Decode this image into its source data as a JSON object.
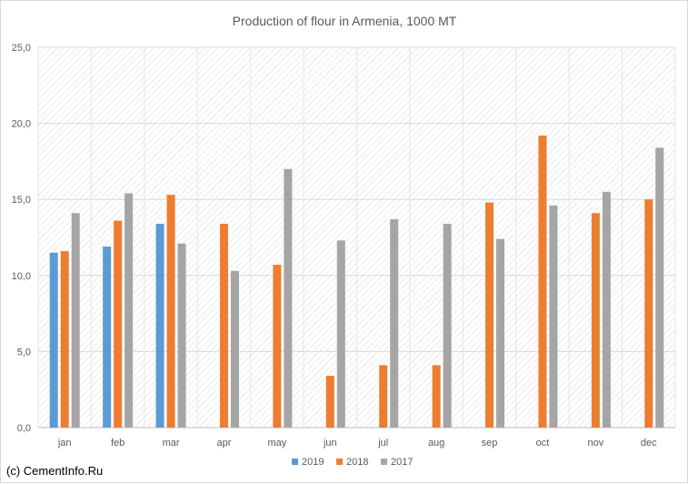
{
  "chart_data": {
    "type": "bar",
    "title": "Production of flour in Armenia, 1000 MT",
    "xlabel": "",
    "ylabel": "",
    "ylim": [
      0,
      25
    ],
    "yticks": [
      "0,0",
      "5,0",
      "10,0",
      "15,0",
      "20,0",
      "25,0"
    ],
    "ytick_values": [
      0,
      5,
      10,
      15,
      20,
      25
    ],
    "categories": [
      "jan",
      "feb",
      "mar",
      "apr",
      "may",
      "jun",
      "jul",
      "aug",
      "sep",
      "oct",
      "nov",
      "dec"
    ],
    "series": [
      {
        "name": "2019",
        "color": "#5b9bd5",
        "values": [
          11.5,
          11.9,
          13.4,
          null,
          null,
          null,
          null,
          null,
          null,
          null,
          null,
          null
        ]
      },
      {
        "name": "2018",
        "color": "#ed7d31",
        "values": [
          11.6,
          13.6,
          15.3,
          13.4,
          10.7,
          3.4,
          4.1,
          4.1,
          14.8,
          19.2,
          14.1,
          15.0
        ]
      },
      {
        "name": "2017",
        "color": "#a5a5a5",
        "values": [
          14.1,
          15.4,
          12.1,
          10.3,
          17.0,
          12.3,
          13.7,
          13.4,
          12.4,
          14.6,
          15.5,
          18.4
        ]
      }
    ],
    "grid": true,
    "legend_position": "bottom"
  },
  "footer": {
    "copyright": "(c) CementInfo.Ru"
  }
}
